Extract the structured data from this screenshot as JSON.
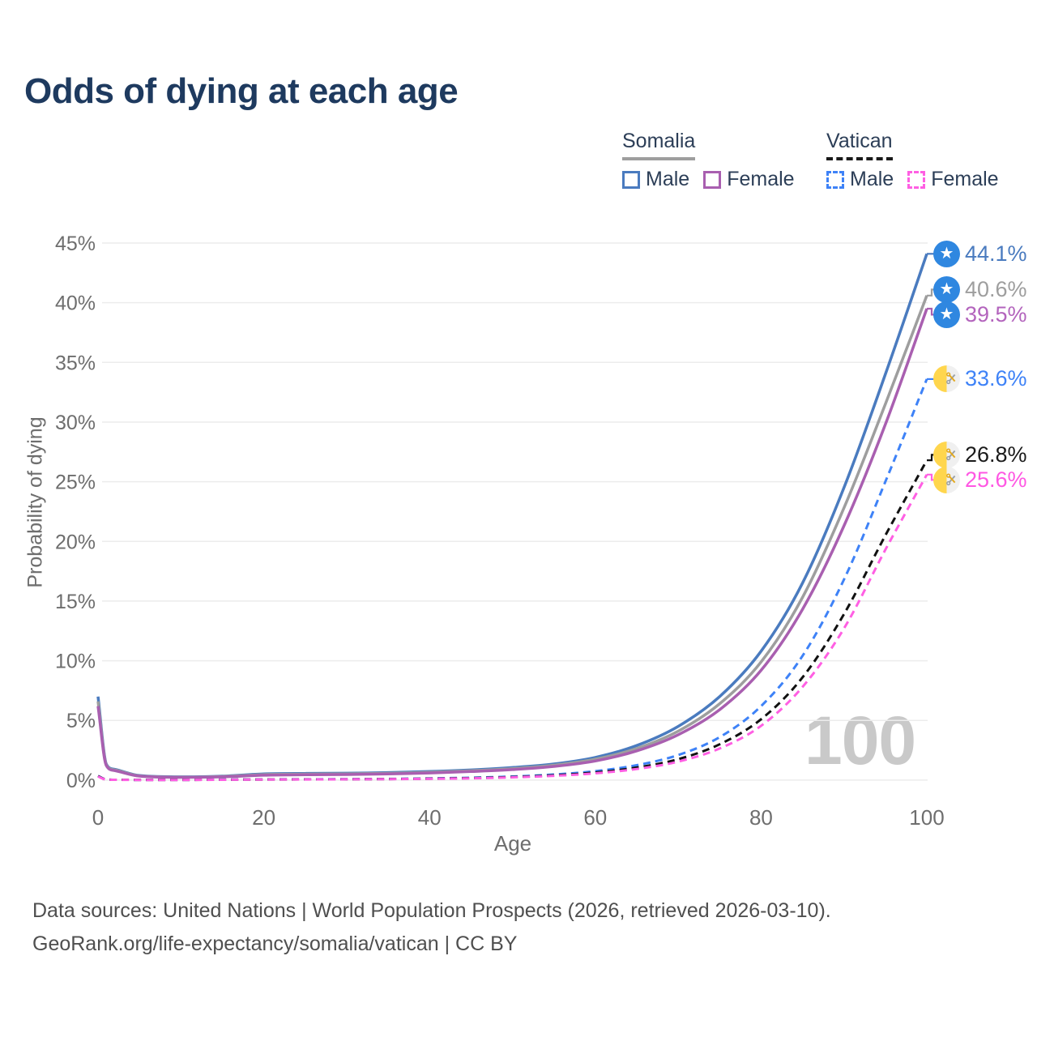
{
  "title": "Odds of dying at each age",
  "watermark": "100",
  "footer": {
    "line1": "Data sources: United Nations | World Population Prospects (2026, retrieved 2026-03-10).",
    "line2": "GeoRank.org/life-expectancy/somalia/vatican | CC BY"
  },
  "legend": {
    "groups": [
      {
        "name": "Somalia",
        "line_style": "solid",
        "line_color": "#9e9e9e",
        "items": [
          {
            "label": "Male",
            "color": "#4a7bbf",
            "style": "solid"
          },
          {
            "label": "Female",
            "color": "#a95fb0",
            "style": "solid"
          }
        ]
      },
      {
        "name": "Vatican",
        "line_style": "dashed",
        "line_color": "#1a1a1a",
        "items": [
          {
            "label": "Male",
            "color": "#3e82f7",
            "style": "dashed"
          },
          {
            "label": "Female",
            "color": "#ff5fe3",
            "style": "dashed"
          }
        ]
      }
    ]
  },
  "icons": {
    "somalia_flag": {
      "bg": "#2f87e0",
      "star_glyph": "★",
      "star_color": "#ffffff"
    },
    "vatican_flag": {
      "left": "#ffd64d",
      "right": "#f0f0f0",
      "key_gold": "#e3a81c",
      "key_gray": "#9aa0a6"
    }
  },
  "colors": {
    "background": "#ffffff",
    "title_text": "#1e3a5f",
    "legend_text": "#2c3e57",
    "axis_text": "#6e6e6e",
    "gridline": "#ececec",
    "footer_text": "#4f4f4f",
    "watermark": "#c9c9c9"
  },
  "chart_data": {
    "type": "line",
    "title": "Odds of dying at each age",
    "xlabel": "Age",
    "ylabel": "Probability of dying",
    "xlim": [
      0,
      100
    ],
    "ylim": [
      0,
      45
    ],
    "grid": "horizontal",
    "legend_position": "top-right",
    "x_ticks": [
      0,
      20,
      40,
      60,
      80,
      100
    ],
    "y_ticks": [
      0,
      5,
      10,
      15,
      20,
      25,
      30,
      35,
      40,
      45
    ],
    "y_tick_labels": [
      "0%",
      "5%",
      "10%",
      "15%",
      "20%",
      "25%",
      "30%",
      "35%",
      "40%",
      "45%"
    ],
    "x": [
      0,
      1,
      2,
      5,
      10,
      15,
      20,
      25,
      30,
      35,
      40,
      45,
      50,
      55,
      60,
      65,
      70,
      75,
      80,
      85,
      90,
      95,
      100
    ],
    "series": [
      {
        "name": "Somalia Male",
        "color": "#4a7bbf",
        "dash": "solid",
        "flag": "somalia",
        "end_label": "44.1%",
        "label_color": "#4a7bbf",
        "values": [
          7.0,
          1.35,
          0.9,
          0.38,
          0.27,
          0.33,
          0.52,
          0.56,
          0.58,
          0.63,
          0.72,
          0.85,
          1.05,
          1.35,
          1.9,
          2.9,
          4.5,
          7.0,
          10.8,
          16.5,
          24.5,
          34.0,
          44.1
        ]
      },
      {
        "name": "Somalia",
        "color": "#9e9e9e",
        "dash": "solid",
        "flag": "somalia",
        "end_label": "40.6%",
        "label_color": "#9e9e9e",
        "values": [
          6.6,
          1.28,
          0.85,
          0.35,
          0.25,
          0.3,
          0.46,
          0.5,
          0.52,
          0.57,
          0.66,
          0.78,
          0.96,
          1.25,
          1.75,
          2.65,
          4.1,
          6.4,
          9.9,
          15.3,
          22.8,
          31.5,
          40.6
        ]
      },
      {
        "name": "Somalia Female",
        "color": "#a95fb0",
        "dash": "solid",
        "flag": "somalia",
        "end_label": "39.5%",
        "label_color": "#b364bd",
        "values": [
          6.2,
          1.22,
          0.8,
          0.33,
          0.23,
          0.27,
          0.41,
          0.45,
          0.47,
          0.52,
          0.6,
          0.72,
          0.88,
          1.15,
          1.6,
          2.45,
          3.8,
          5.9,
          9.2,
          14.3,
          21.3,
          29.8,
          39.5
        ]
      },
      {
        "name": "Vatican Male",
        "color": "#3e82f7",
        "dash": "dashed",
        "flag": "vatican",
        "end_label": "33.6%",
        "label_color": "#3e82f7",
        "values": [
          0.35,
          0.05,
          0.03,
          0.02,
          0.02,
          0.04,
          0.06,
          0.07,
          0.08,
          0.1,
          0.14,
          0.2,
          0.3,
          0.47,
          0.75,
          1.25,
          2.1,
          3.6,
          6.2,
          10.4,
          16.8,
          25.0,
          33.6
        ]
      },
      {
        "name": "Vatican",
        "color": "#111111",
        "dash": "dashed",
        "flag": "vatican",
        "end_label": "26.8%",
        "label_color": "#1a1a1a",
        "values": [
          0.33,
          0.045,
          0.028,
          0.018,
          0.018,
          0.035,
          0.05,
          0.06,
          0.07,
          0.09,
          0.12,
          0.17,
          0.26,
          0.4,
          0.64,
          1.05,
          1.75,
          3.0,
          5.1,
          8.6,
          13.9,
          20.5,
          26.8
        ]
      },
      {
        "name": "Vatican Female",
        "color": "#ff5fe3",
        "dash": "dashed",
        "flag": "vatican",
        "end_label": "25.6%",
        "label_color": "#ff57e3",
        "values": [
          0.3,
          0.04,
          0.025,
          0.015,
          0.015,
          0.03,
          0.045,
          0.055,
          0.065,
          0.08,
          0.11,
          0.15,
          0.23,
          0.36,
          0.57,
          0.93,
          1.55,
          2.65,
          4.55,
          7.8,
          12.7,
          19.3,
          25.6
        ]
      }
    ]
  }
}
